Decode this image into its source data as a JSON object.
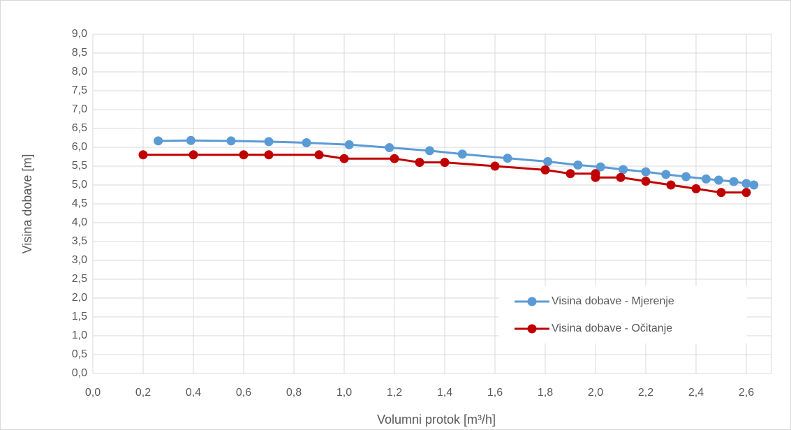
{
  "chart_data": {
    "type": "line",
    "xlabel": "Volumni protok [m³/h]",
    "ylabel": "Visina dobave [m]",
    "xlim": [
      0,
      2.7
    ],
    "xticks": [
      {
        "value": 0,
        "label": "0,0"
      },
      {
        "value": 0.2,
        "label": "0,2"
      },
      {
        "value": 0.4,
        "label": "0,4"
      },
      {
        "value": 0.6,
        "label": "0,6"
      },
      {
        "value": 0.8,
        "label": "0,8"
      },
      {
        "value": 1,
        "label": "1,0"
      },
      {
        "value": 1.2,
        "label": "1,2"
      },
      {
        "value": 1.4,
        "label": "1,4"
      },
      {
        "value": 1.6,
        "label": "1,6"
      },
      {
        "value": 1.8,
        "label": "1,8"
      },
      {
        "value": 2,
        "label": "2,0"
      },
      {
        "value": 2.2,
        "label": "2,2"
      },
      {
        "value": 2.4,
        "label": "2,4"
      },
      {
        "value": 2.6,
        "label": "2,6"
      }
    ],
    "ylim": [
      0,
      9
    ],
    "yticks": [
      {
        "value": 0,
        "label": "0,0"
      },
      {
        "value": 0.5,
        "label": "0,5"
      },
      {
        "value": 1,
        "label": "1,0"
      },
      {
        "value": 1.5,
        "label": "1,5"
      },
      {
        "value": 2,
        "label": "2,0"
      },
      {
        "value": 2.5,
        "label": "2,5"
      },
      {
        "value": 3,
        "label": "3,0"
      },
      {
        "value": 3.5,
        "label": "3,5"
      },
      {
        "value": 4,
        "label": "4,0"
      },
      {
        "value": 4.5,
        "label": "4,5"
      },
      {
        "value": 5,
        "label": "5,0"
      },
      {
        "value": 5.5,
        "label": "5,5"
      },
      {
        "value": 6,
        "label": "6,0"
      },
      {
        "value": 6.5,
        "label": "6,5"
      },
      {
        "value": 7,
        "label": "7,0"
      },
      {
        "value": 7.5,
        "label": "7,5"
      },
      {
        "value": 8,
        "label": "8,0"
      },
      {
        "value": 8.5,
        "label": "8,5"
      },
      {
        "value": 9,
        "label": "9,0"
      }
    ],
    "grid": true,
    "legend": "lower right",
    "series": [
      {
        "name": "Visina dobave - Mjerenje",
        "color": "#5b9bd5",
        "x": [
          0.26,
          0.39,
          0.55,
          0.7,
          0.85,
          1.02,
          1.18,
          1.34,
          1.47,
          1.65,
          1.81,
          1.93,
          2.02,
          2.11,
          2.2,
          2.28,
          2.36,
          2.44,
          2.49,
          2.55,
          2.6,
          2.63
        ],
        "values": [
          6.17,
          6.18,
          6.17,
          6.15,
          6.12,
          6.07,
          5.99,
          5.91,
          5.82,
          5.71,
          5.62,
          5.53,
          5.48,
          5.41,
          5.35,
          5.28,
          5.22,
          5.16,
          5.13,
          5.09,
          5.04,
          5.0
        ]
      },
      {
        "name": "Visina dobave - Očitanje",
        "color": "#c00000",
        "x": [
          0.2,
          0.4,
          0.6,
          0.7,
          0.9,
          1.0,
          1.2,
          1.3,
          1.4,
          1.6,
          1.8,
          1.9,
          2.0,
          2.0,
          2.1,
          2.2,
          2.3,
          2.4,
          2.5,
          2.6
        ],
        "values": [
          5.8,
          5.8,
          5.8,
          5.8,
          5.8,
          5.7,
          5.7,
          5.6,
          5.6,
          5.5,
          5.4,
          5.3,
          5.3,
          5.2,
          5.2,
          5.1,
          5.0,
          4.9,
          4.8,
          4.8
        ]
      }
    ]
  }
}
